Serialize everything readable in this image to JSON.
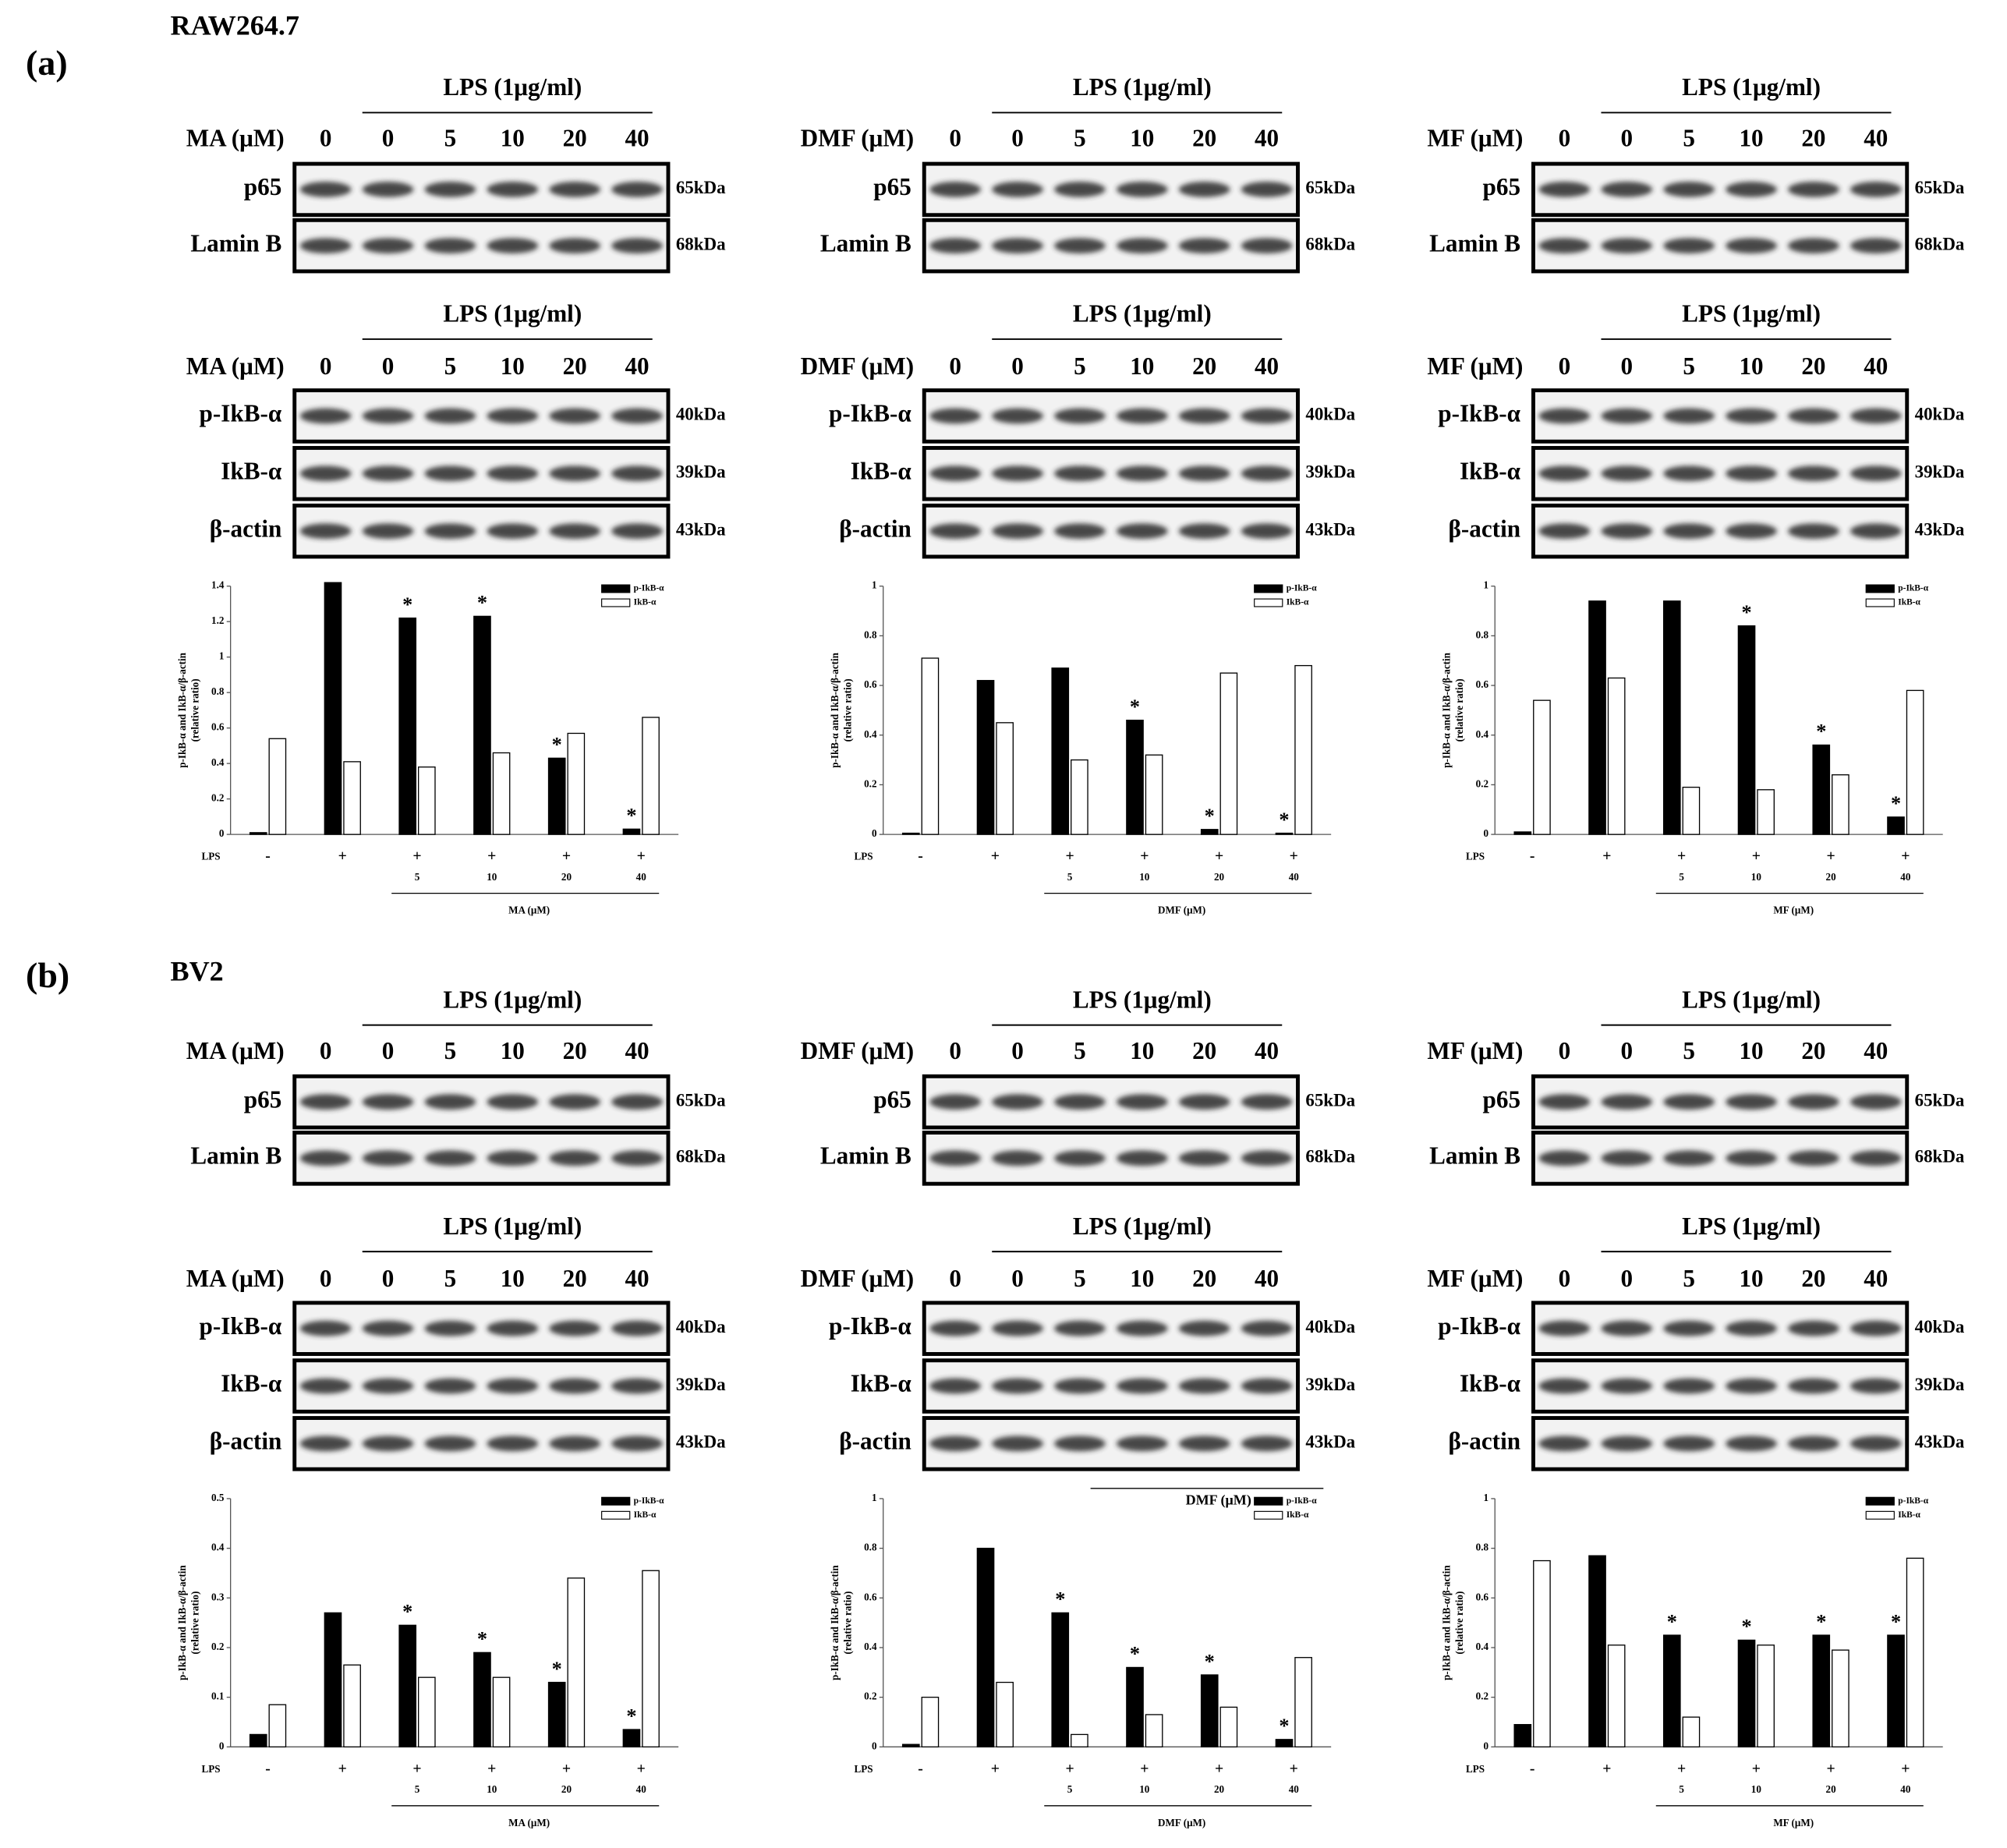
{
  "sections": [
    {
      "label": "(a)",
      "cell_line": "RAW264.7",
      "panels": [
        {
          "blots": [
            {
              "treatment": "LPS (1μg/ml)",
              "dose_label": "MA (μM)",
              "lanes": [
                "0",
                "0",
                "5",
                "10",
                "20",
                "40"
              ],
              "rows": [
                {
                  "name": "p65",
                  "size": "65kDa"
                },
                {
                  "name": "Lamin B",
                  "size": "68kDa"
                }
              ]
            },
            {
              "treatment": "LPS (1μg/ml)",
              "dose_label": "MA (μM)",
              "lanes": [
                "0",
                "0",
                "5",
                "10",
                "20",
                "40"
              ],
              "rows": [
                {
                  "name": "p-IkB-α",
                  "size": "40kDa"
                },
                {
                  "name": "IkB-α",
                  "size": "39kDa"
                },
                {
                  "name": "β-actin",
                  "size": "43kDa"
                }
              ]
            }
          ]
        },
        {
          "blots": [
            {
              "treatment": "LPS (1μg/ml)",
              "dose_label": "DMF (μM)",
              "lanes": [
                "0",
                "0",
                "5",
                "10",
                "20",
                "40"
              ],
              "rows": [
                {
                  "name": "p65",
                  "size": "65kDa"
                },
                {
                  "name": "Lamin B",
                  "size": "68kDa"
                }
              ]
            },
            {
              "treatment": "LPS (1μg/ml)",
              "dose_label": "DMF (μM)",
              "lanes": [
                "0",
                "0",
                "5",
                "10",
                "20",
                "40"
              ],
              "rows": [
                {
                  "name": "p-IkB-α",
                  "size": "40kDa"
                },
                {
                  "name": "IkB-α",
                  "size": "39kDa"
                },
                {
                  "name": "β-actin",
                  "size": "43kDa"
                }
              ]
            }
          ]
        },
        {
          "blots": [
            {
              "treatment": "LPS (1μg/ml)",
              "dose_label": "MF (μM)",
              "lanes": [
                "0",
                "0",
                "5",
                "10",
                "20",
                "40"
              ],
              "rows": [
                {
                  "name": "p65",
                  "size": "65kDa"
                },
                {
                  "name": "Lamin B",
                  "size": "68kDa"
                }
              ]
            },
            {
              "treatment": "LPS (1μg/ml)",
              "dose_label": "MF (μM)",
              "lanes": [
                "0",
                "0",
                "5",
                "10",
                "20",
                "40"
              ],
              "rows": [
                {
                  "name": "p-IkB-α",
                  "size": "40kDa"
                },
                {
                  "name": "IkB-α",
                  "size": "39kDa"
                },
                {
                  "name": "β-actin",
                  "size": "43kDa"
                }
              ]
            }
          ]
        }
      ]
    },
    {
      "label": "(b)",
      "cell_line": "BV2",
      "panels": [
        {
          "blots": [
            {
              "treatment": "LPS (1μg/ml)",
              "dose_label": "MA (μM)",
              "lanes": [
                "0",
                "0",
                "5",
                "10",
                "20",
                "40"
              ],
              "rows": [
                {
                  "name": "p65",
                  "size": "65kDa"
                },
                {
                  "name": "Lamin B",
                  "size": "68kDa"
                }
              ]
            },
            {
              "treatment": "LPS (1μg/ml)",
              "dose_label": "MA (μM)",
              "lanes": [
                "0",
                "0",
                "5",
                "10",
                "20",
                "40"
              ],
              "rows": [
                {
                  "name": "p-IkB-α",
                  "size": "40kDa"
                },
                {
                  "name": "IkB-α",
                  "size": "39kDa"
                },
                {
                  "name": "β-actin",
                  "size": "43kDa"
                }
              ]
            }
          ]
        },
        {
          "blots": [
            {
              "treatment": "LPS (1μg/ml)",
              "dose_label": "DMF (μM)",
              "lanes": [
                "0",
                "0",
                "5",
                "10",
                "20",
                "40"
              ],
              "rows": [
                {
                  "name": "p65",
                  "size": "65kDa"
                },
                {
                  "name": "Lamin B",
                  "size": "68kDa"
                }
              ]
            },
            {
              "treatment": "LPS (1μg/ml)",
              "dose_label": "DMF (μM)",
              "lanes": [
                "0",
                "0",
                "5",
                "10",
                "20",
                "40"
              ],
              "rows": [
                {
                  "name": "p-IkB-α",
                  "size": "40kDa"
                },
                {
                  "name": "IkB-α",
                  "size": "39kDa"
                },
                {
                  "name": "β-actin",
                  "size": "43kDa"
                }
              ],
              "note": "DMF (μM)"
            }
          ]
        },
        {
          "blots": [
            {
              "treatment": "LPS (1μg/ml)",
              "dose_label": "MF (μM)",
              "lanes": [
                "0",
                "0",
                "5",
                "10",
                "20",
                "40"
              ],
              "rows": [
                {
                  "name": "p65",
                  "size": "65kDa"
                },
                {
                  "name": "Lamin B",
                  "size": "68kDa"
                }
              ]
            },
            {
              "treatment": "LPS (1μg/ml)",
              "dose_label": "MF (μM)",
              "lanes": [
                "0",
                "0",
                "5",
                "10",
                "20",
                "40"
              ],
              "rows": [
                {
                  "name": "p-IkB-α",
                  "size": "40kDa"
                },
                {
                  "name": "IkB-α",
                  "size": "39kDa"
                },
                {
                  "name": "β-actin",
                  "size": "43kDa"
                }
              ]
            }
          ]
        }
      ]
    }
  ],
  "chart_data": [
    {
      "type": "bar",
      "ylabel": [
        "p-IkB-α and IkB-α/β-actin",
        "(relative ratio)"
      ],
      "ylim": [
        0,
        1.4
      ],
      "yticks": [
        0,
        0.2,
        0.4,
        0.6,
        0.8,
        1,
        1.2,
        1.4
      ],
      "series": [
        {
          "name": "p-IkB-α",
          "color": "#000000",
          "values": [
            0.01,
            1.42,
            1.22,
            1.23,
            0.43,
            0.03
          ]
        },
        {
          "name": "IkB-α",
          "color": "#ffffff",
          "values": [
            0.54,
            0.41,
            0.38,
            0.46,
            0.57,
            0.66
          ]
        }
      ],
      "significant": [
        false,
        false,
        true,
        true,
        true,
        true
      ],
      "marker": "*",
      "x_row_label": "LPS",
      "lps": [
        "-",
        "+",
        "+",
        "+",
        "+",
        "+"
      ],
      "doses": [
        null,
        null,
        "5",
        "10",
        "20",
        "40"
      ],
      "dose_group": "MA (μM)"
    },
    {
      "type": "bar",
      "ylabel": [
        "p-IkB-α and IkB-α/β-actin",
        "(relative ratio)"
      ],
      "ylim": [
        0,
        1
      ],
      "yticks": [
        0,
        0.2,
        0.4,
        0.6,
        0.8,
        1
      ],
      "series": [
        {
          "name": "p-IkB-α",
          "color": "#000000",
          "values": [
            0.005,
            0.62,
            0.67,
            0.46,
            0.02,
            0.005
          ]
        },
        {
          "name": "IkB-α",
          "color": "#ffffff",
          "values": [
            0.71,
            0.45,
            0.3,
            0.32,
            0.65,
            0.68
          ]
        }
      ],
      "significant": [
        false,
        false,
        false,
        true,
        true,
        true
      ],
      "marker": "*",
      "x_row_label": "LPS",
      "lps": [
        "-",
        "+",
        "+",
        "+",
        "+",
        "+"
      ],
      "doses": [
        null,
        null,
        "5",
        "10",
        "20",
        "40"
      ],
      "dose_group": "DMF (μM)"
    },
    {
      "type": "bar",
      "ylabel": [
        "p-IkB-α and IkB-α/β-actin",
        "(relative ratio)"
      ],
      "ylim": [
        0,
        1
      ],
      "yticks": [
        0,
        0.2,
        0.4,
        0.6,
        0.8,
        1
      ],
      "series": [
        {
          "name": "p-IkB-α",
          "color": "#000000",
          "values": [
            0.01,
            0.94,
            0.94,
            0.84,
            0.36,
            0.07
          ]
        },
        {
          "name": "IkB-α",
          "color": "#ffffff",
          "values": [
            0.54,
            0.63,
            0.19,
            0.18,
            0.24,
            0.58
          ]
        }
      ],
      "significant": [
        false,
        false,
        false,
        true,
        true,
        true
      ],
      "marker": "*",
      "x_row_label": "LPS",
      "lps": [
        "-",
        "+",
        "+",
        "+",
        "+",
        "+"
      ],
      "doses": [
        null,
        null,
        "5",
        "10",
        "20",
        "40"
      ],
      "dose_group": "MF (μM)"
    },
    {
      "type": "bar",
      "ylabel": [
        "p-IkB-α and IkB-α/β-actin",
        "(relative ratio)"
      ],
      "ylim": [
        0,
        0.5
      ],
      "yticks": [
        0,
        0.1,
        0.2,
        0.3,
        0.4,
        0.5
      ],
      "series": [
        {
          "name": "p-IkB-α",
          "color": "#000000",
          "values": [
            0.025,
            0.27,
            0.245,
            0.19,
            0.13,
            0.035
          ]
        },
        {
          "name": "IkB-α",
          "color": "#ffffff",
          "values": [
            0.085,
            0.165,
            0.14,
            0.14,
            0.34,
            0.355
          ]
        }
      ],
      "significant": [
        false,
        false,
        true,
        true,
        true,
        true
      ],
      "marker": "*",
      "x_row_label": "LPS",
      "lps": [
        "-",
        "+",
        "+",
        "+",
        "+",
        "+"
      ],
      "doses": [
        null,
        null,
        "5",
        "10",
        "20",
        "40"
      ],
      "dose_group": "MA (μM)"
    },
    {
      "type": "bar",
      "ylabel": [
        "p-IkB-α and IkB-α/β-actin",
        "(relative ratio)"
      ],
      "ylim": [
        0,
        1
      ],
      "yticks": [
        0,
        0.2,
        0.4,
        0.6,
        0.8,
        1
      ],
      "series": [
        {
          "name": "p-IkB-α",
          "color": "#000000",
          "values": [
            0.01,
            0.8,
            0.54,
            0.32,
            0.29,
            0.03
          ]
        },
        {
          "name": "IkB-α",
          "color": "#ffffff",
          "values": [
            0.2,
            0.26,
            0.05,
            0.13,
            0.16,
            0.36
          ]
        }
      ],
      "significant": [
        false,
        false,
        true,
        true,
        true,
        true
      ],
      "marker": "*",
      "x_row_label": "LPS",
      "lps": [
        "-",
        "+",
        "+",
        "+",
        "+",
        "+"
      ],
      "doses": [
        null,
        null,
        "5",
        "10",
        "20",
        "40"
      ],
      "dose_group": "DMF (μM)"
    },
    {
      "type": "bar",
      "ylabel": [
        "p-IkB-α and IkB-α/β-actin",
        "(relative ratio)"
      ],
      "ylim": [
        0,
        1
      ],
      "yticks": [
        0,
        0.2,
        0.4,
        0.6,
        0.8,
        1
      ],
      "series": [
        {
          "name": "p-IkB-α",
          "color": "#000000",
          "values": [
            0.09,
            0.77,
            0.45,
            0.43,
            0.45,
            0.45
          ]
        },
        {
          "name": "IkB-α",
          "color": "#ffffff",
          "values": [
            0.75,
            0.41,
            0.12,
            0.41,
            0.39,
            0.76
          ]
        }
      ],
      "significant": [
        false,
        false,
        true,
        true,
        true,
        true
      ],
      "marker": "*",
      "x_row_label": "LPS",
      "lps": [
        "-",
        "+",
        "+",
        "+",
        "+",
        "+"
      ],
      "doses": [
        null,
        null,
        "5",
        "10",
        "20",
        "40"
      ],
      "dose_group": "MF (μM)"
    }
  ]
}
